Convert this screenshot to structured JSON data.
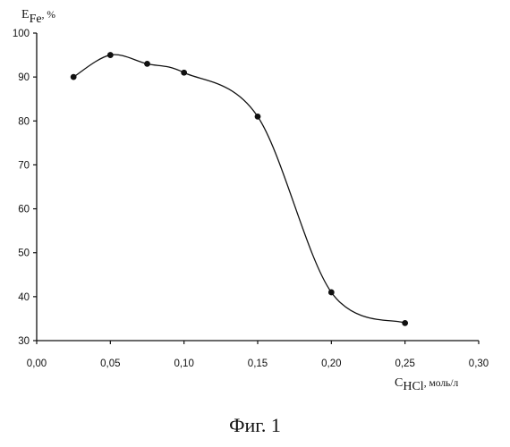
{
  "chart_data": {
    "type": "line",
    "x": [
      0.025,
      0.05,
      0.075,
      0.1,
      0.15,
      0.2,
      0.25
    ],
    "series": [
      {
        "values": [
          90,
          95,
          93,
          91,
          81,
          41,
          34
        ]
      }
    ],
    "xlim": [
      0.0,
      0.3
    ],
    "ylim": [
      30,
      100
    ],
    "xticks": [
      "0,00",
      "0,05",
      "0,10",
      "0,15",
      "0,20",
      "0,25",
      "0,30"
    ],
    "yticks": [
      "30",
      "40",
      "50",
      "60",
      "70",
      "80",
      "90",
      "100"
    ],
    "ylabel": {
      "main": "E",
      "sub": "Fe",
      "unit": ", %"
    },
    "xlabel": {
      "main": "C",
      "sub": "HCl",
      "unit": ", моль/л"
    },
    "grid": false,
    "legend": "none",
    "smooth": true,
    "marker": "filled-circle"
  },
  "figure": {
    "caption": "Фиг. 1"
  }
}
